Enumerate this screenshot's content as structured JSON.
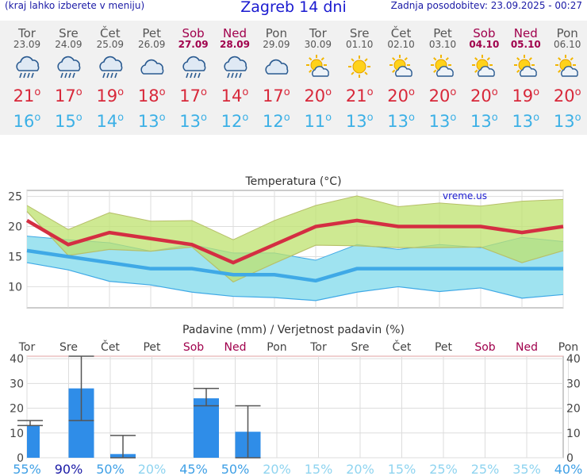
{
  "header": {
    "menu_hint": "(kraj lahko izberete v meniju)",
    "title": "Zagreb 14 dni",
    "updated": "Zadnja posodobitev: 23.09.2025 - 00:27"
  },
  "days": [
    {
      "name": "Tor",
      "date": "23.09",
      "weekend": false,
      "icon": "rain-cloud-icon",
      "tmax": "21",
      "tmin": "16"
    },
    {
      "name": "Sre",
      "date": "24.09",
      "weekend": false,
      "icon": "rain-cloud-icon",
      "tmax": "17",
      "tmin": "15"
    },
    {
      "name": "Čet",
      "date": "25.09",
      "weekend": false,
      "icon": "rain-cloud-icon",
      "tmax": "19",
      "tmin": "14"
    },
    {
      "name": "Pet",
      "date": "26.09",
      "weekend": false,
      "icon": "cloud-icon",
      "tmax": "18",
      "tmin": "13"
    },
    {
      "name": "Sob",
      "date": "27.09",
      "weekend": true,
      "icon": "rain-cloud-icon",
      "tmax": "17",
      "tmin": "13"
    },
    {
      "name": "Ned",
      "date": "28.09",
      "weekend": true,
      "icon": "rain-cloud-icon",
      "tmax": "14",
      "tmin": "12"
    },
    {
      "name": "Pon",
      "date": "29.09",
      "weekend": false,
      "icon": "cloud-icon",
      "tmax": "17",
      "tmin": "12"
    },
    {
      "name": "Tor",
      "date": "30.09",
      "weekend": false,
      "icon": "sun-cloud-icon",
      "tmax": "20",
      "tmin": "11"
    },
    {
      "name": "Sre",
      "date": "01.10",
      "weekend": false,
      "icon": "sun-icon",
      "tmax": "21",
      "tmin": "13"
    },
    {
      "name": "Čet",
      "date": "02.10",
      "weekend": false,
      "icon": "sun-cloud-icon",
      "tmax": "20",
      "tmin": "13"
    },
    {
      "name": "Pet",
      "date": "03.10",
      "weekend": false,
      "icon": "sun-cloud-icon",
      "tmax": "20",
      "tmin": "13"
    },
    {
      "name": "Sob",
      "date": "04.10",
      "weekend": true,
      "icon": "sun-cloud-icon",
      "tmax": "20",
      "tmin": "13"
    },
    {
      "name": "Ned",
      "date": "05.10",
      "weekend": true,
      "icon": "sun-cloud-icon",
      "tmax": "19",
      "tmin": "13"
    },
    {
      "name": "Pon",
      "date": "06.10",
      "weekend": false,
      "icon": "sun-cloud-icon",
      "tmax": "20",
      "tmin": "13"
    }
  ],
  "chart_data": [
    {
      "type": "area",
      "title": "Temperatura (°C)",
      "watermark": "vreme.us",
      "ylim": [
        6.5,
        26
      ],
      "yticks": [
        10,
        15,
        20,
        25
      ],
      "grid": true,
      "x": [
        "23.09",
        "24.09",
        "25.09",
        "26.09",
        "27.09",
        "28.09",
        "29.09",
        "30.09",
        "01.10",
        "02.10",
        "03.10",
        "04.10",
        "05.10",
        "06.10"
      ],
      "series": [
        {
          "role": "tmax_upper",
          "values": [
            23.5,
            19.5,
            22.3,
            20.9,
            21.0,
            17.8,
            21.0,
            23.5,
            25.1,
            23.3,
            23.9,
            23.4,
            24.2,
            24.5
          ]
        },
        {
          "role": "tmax_lower",
          "values": [
            22.5,
            15.2,
            16.2,
            15.9,
            16.6,
            10.8,
            13.9,
            16.9,
            16.8,
            16.5,
            16.5,
            16.6,
            14.0,
            16.0
          ]
        },
        {
          "role": "tmax",
          "values": [
            21,
            17,
            19,
            18,
            17,
            14,
            17,
            20,
            21,
            20,
            20,
            20,
            19,
            20
          ]
        },
        {
          "role": "tmin_upper",
          "values": [
            18.4,
            17.8,
            17.3,
            15.9,
            17.0,
            15.6,
            15.6,
            14.4,
            17.0,
            16.2,
            17.0,
            16.5,
            18.2,
            17.5
          ]
        },
        {
          "role": "tmin_lower",
          "values": [
            14.0,
            12.8,
            10.9,
            10.3,
            9.1,
            8.4,
            8.2,
            7.7,
            9.1,
            10.0,
            9.2,
            9.8,
            8.1,
            8.7
          ]
        },
        {
          "role": "tmin",
          "values": [
            16,
            15,
            14,
            13,
            13,
            12,
            12,
            11,
            13,
            13,
            13,
            13,
            13,
            13
          ]
        }
      ],
      "colors": {
        "tmax": "#d42e42",
        "tmax_band": "#d5ec8e",
        "tmin": "#3fa9e6",
        "tmin_band": "#9fe3f0",
        "overlap": "#7ccf7a"
      }
    },
    {
      "type": "bar",
      "title": "Padavine (mm) / Verjetnost padavin (%)",
      "categories": [
        "Tor",
        "Sre",
        "Čet",
        "Pet",
        "Sob",
        "Ned",
        "Pon",
        "Tor",
        "Sre",
        "Čet",
        "Pet",
        "Sob",
        "Ned",
        "Pon"
      ],
      "weekend": [
        false,
        false,
        false,
        false,
        true,
        true,
        false,
        false,
        false,
        false,
        false,
        true,
        true,
        false
      ],
      "values": [
        13,
        28,
        1.5,
        0,
        24,
        10.5,
        0,
        0,
        0,
        0,
        0,
        0,
        0,
        0
      ],
      "err_low": [
        13,
        15,
        0,
        null,
        21,
        0,
        null,
        null,
        null,
        null,
        null,
        null,
        null,
        null
      ],
      "err_high": [
        15,
        41,
        9,
        null,
        28,
        21,
        null,
        null,
        null,
        null,
        null,
        null,
        null,
        null
      ],
      "probability": [
        "55%",
        "90%",
        "50%",
        "20%",
        "45%",
        "50%",
        "20%",
        "15%",
        "20%",
        "15%",
        "25%",
        "25%",
        "35%",
        "40%"
      ],
      "ylim": [
        0,
        41
      ],
      "yticks": [
        0,
        10,
        20,
        30,
        40
      ],
      "colors": {
        "bar": "#2f8de8",
        "whisker": "#555555",
        "prob_high": "#1a1aa6",
        "prob_mid": "#3fa0e6",
        "prob_low": "#8fd4f0"
      }
    }
  ]
}
